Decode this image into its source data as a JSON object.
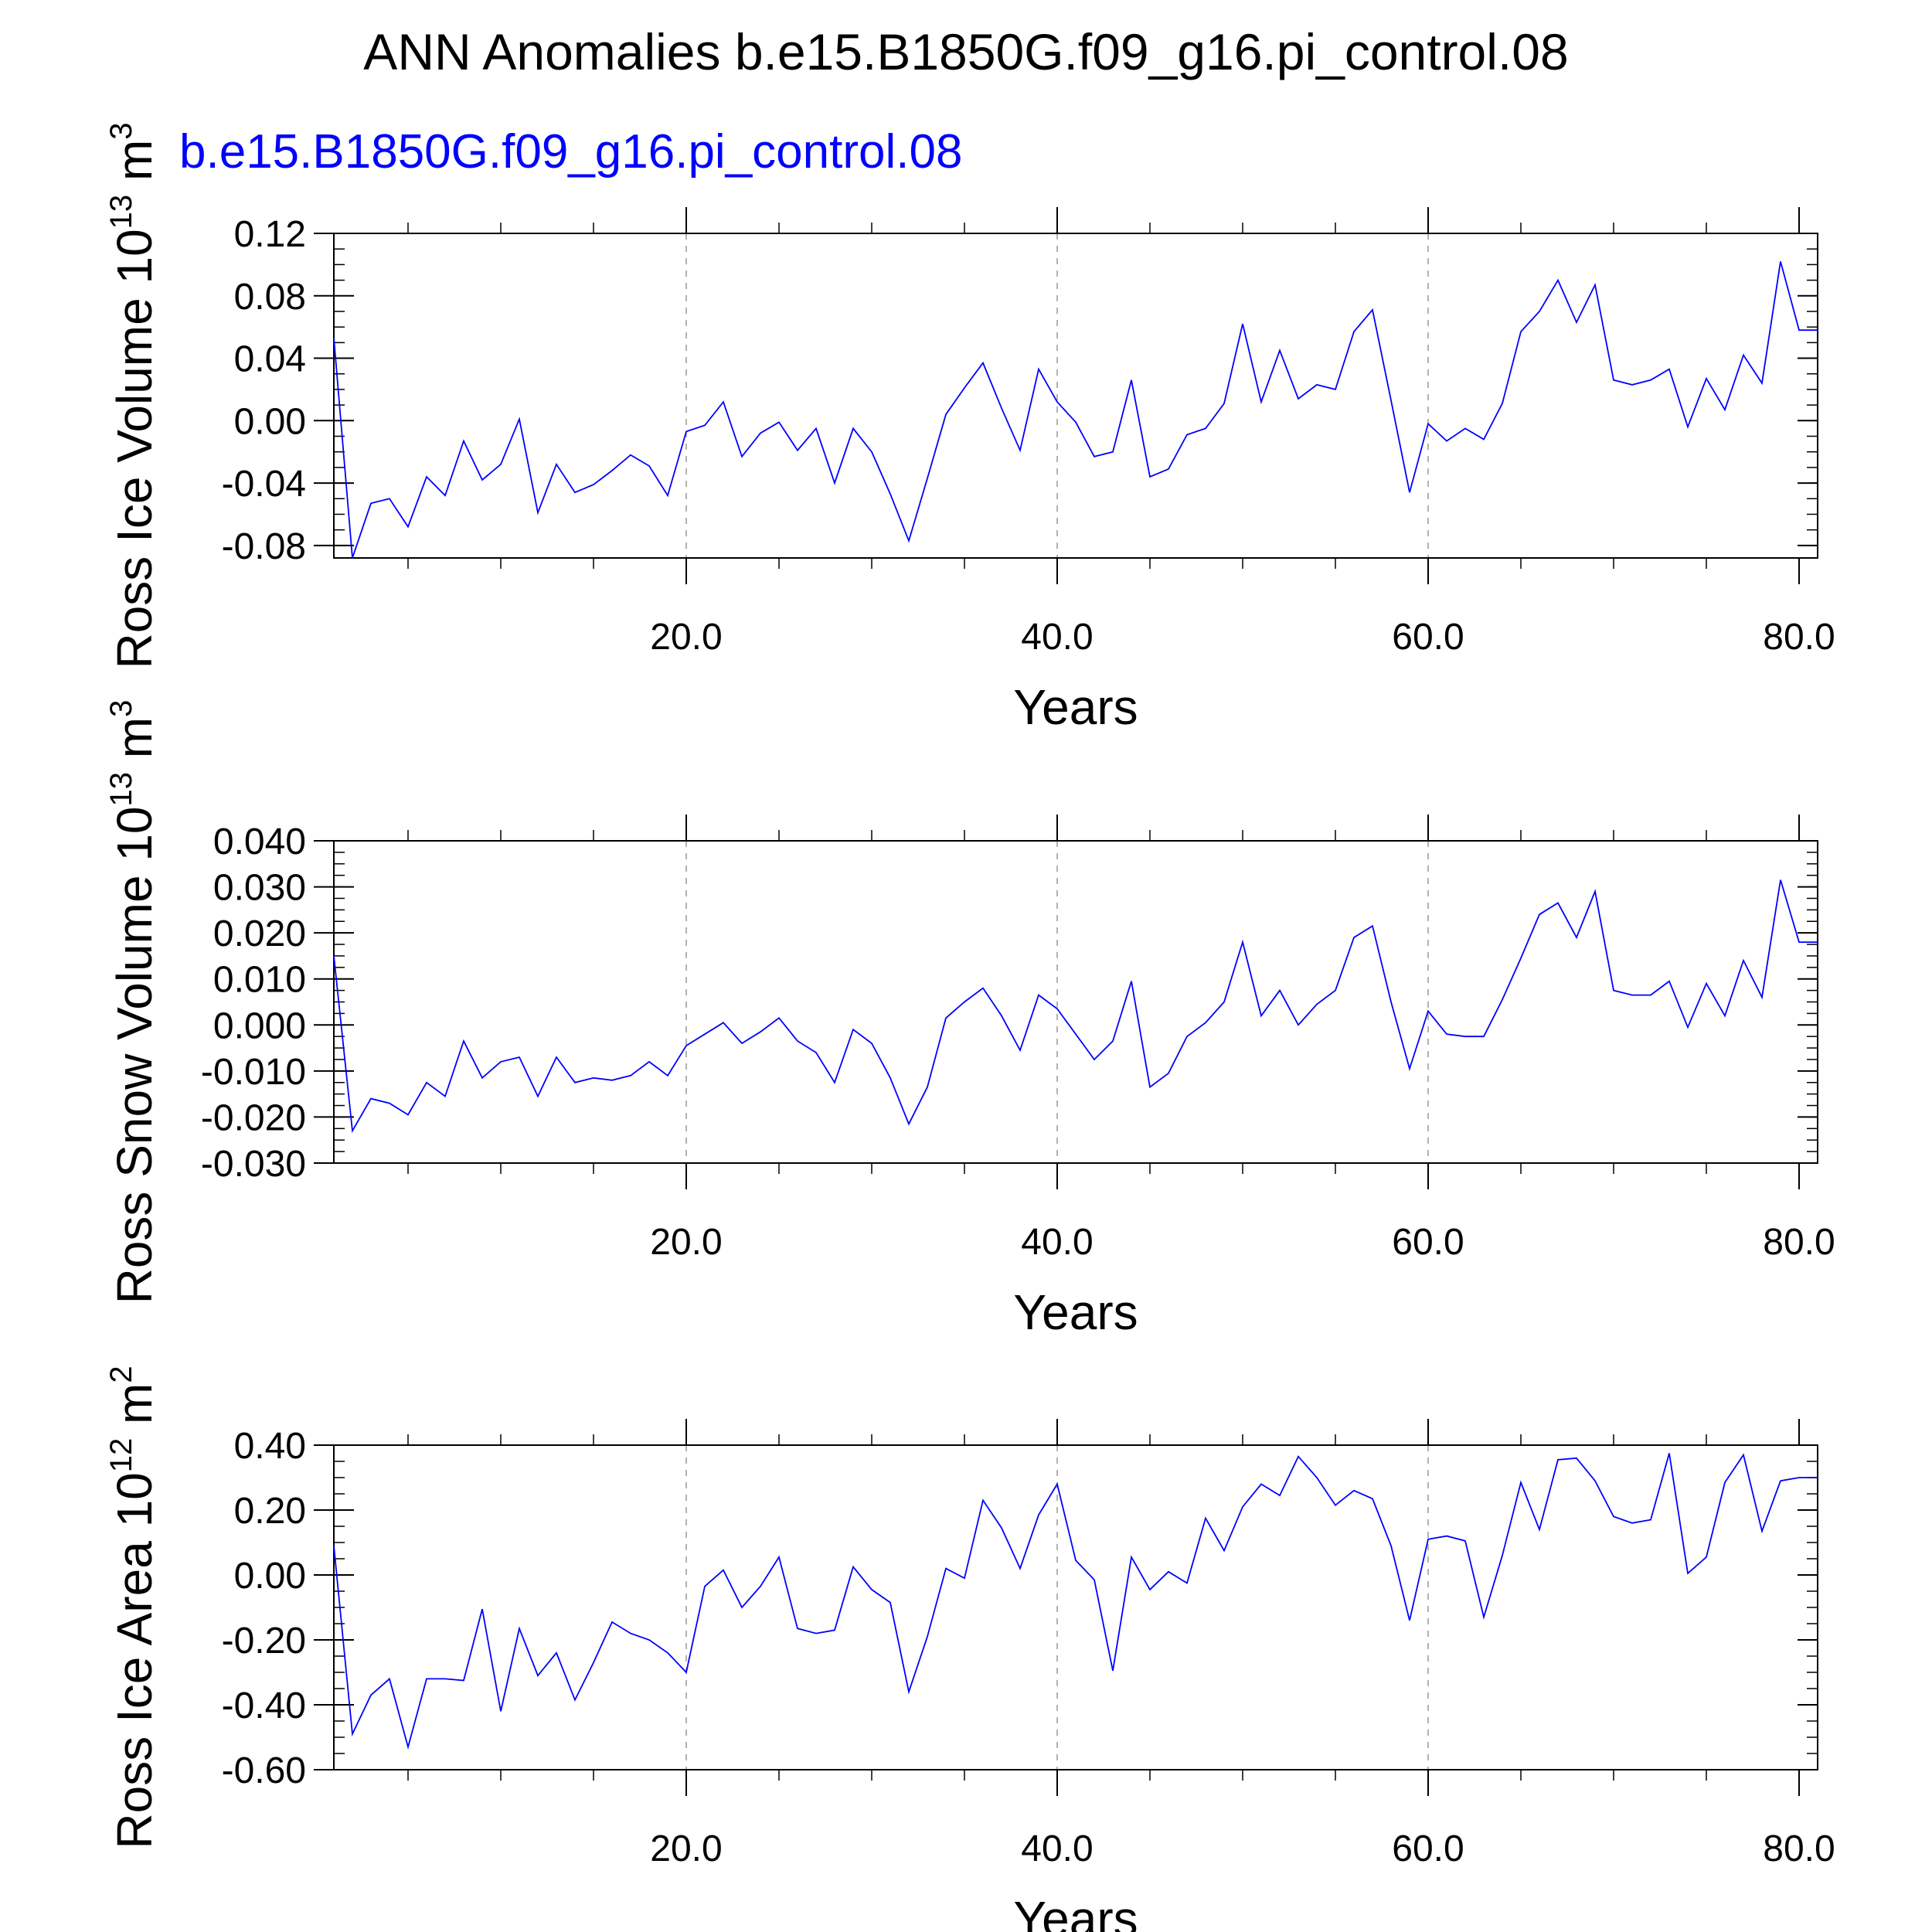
{
  "title": "ANN Anomalies b.e15.B1850G.f09_g16.pi_control.08",
  "case_label": "b.e15.B1850G.f09_g16.pi_control.08",
  "colors": {
    "line": "#0000ff",
    "case_label": "#0000ff",
    "grid": "#999999"
  },
  "chart_data": [
    {
      "type": "line",
      "ylabel": "Ross Ice Volume 10",
      "yunit_exp": "13",
      "yunit_post": " m",
      "yunit_exp2": "3",
      "xlabel": "Years",
      "xlim": [
        1,
        81
      ],
      "ylim": [
        -0.088,
        0.12
      ],
      "yticks": [
        0.12,
        0.08,
        0.04,
        0.0,
        -0.04,
        -0.08
      ],
      "ytick_labels": [
        "0.12",
        "0.08",
        "0.04",
        "0.00",
        "-0.04",
        "-0.08"
      ],
      "yminor": 0.01,
      "xticks": [
        20,
        40,
        60,
        80
      ],
      "xtick_labels": [
        "20.0",
        "40.0",
        "60.0",
        "80.0"
      ],
      "xminor": 5,
      "vgrid": [
        20,
        40,
        60
      ],
      "series": [
        {
          "x": [
            1,
            2,
            3,
            4,
            5,
            6,
            7,
            8,
            9,
            10,
            11,
            12,
            13,
            14,
            15,
            16,
            17,
            18,
            19,
            20,
            21,
            22,
            23,
            24,
            25,
            26,
            27,
            28,
            29,
            30,
            31,
            32,
            33,
            34,
            35,
            36,
            37,
            38,
            39,
            40,
            41,
            42,
            43,
            44,
            45,
            46,
            47,
            48,
            49,
            50,
            51,
            52,
            53,
            54,
            55,
            56,
            57,
            58,
            59,
            60,
            61,
            62,
            63,
            64,
            65,
            66,
            67,
            68,
            69,
            70,
            71,
            72,
            73,
            74,
            75,
            76,
            77,
            78,
            79,
            80,
            81
          ],
          "values": [
            0.053,
            -0.088,
            -0.053,
            -0.05,
            -0.068,
            -0.036,
            -0.048,
            -0.013,
            -0.038,
            -0.028,
            0.001,
            -0.059,
            -0.028,
            -0.046,
            -0.041,
            -0.032,
            -0.022,
            -0.029,
            -0.048,
            -0.007,
            -0.003,
            0.012,
            -0.023,
            -0.008,
            -0.001,
            -0.019,
            -0.005,
            -0.04,
            -0.005,
            -0.02,
            -0.047,
            -0.077,
            -0.037,
            0.004,
            0.021,
            0.037,
            0.008,
            -0.019,
            0.033,
            0.012,
            -0.001,
            -0.023,
            -0.02,
            0.026,
            -0.036,
            -0.031,
            -0.009,
            -0.005,
            0.011,
            0.062,
            0.012,
            0.045,
            0.014,
            0.023,
            0.02,
            0.057,
            0.071,
            0.013,
            -0.046,
            -0.002,
            -0.013,
            -0.005,
            -0.012,
            0.011,
            0.057,
            0.07,
            0.09,
            0.063,
            0.087,
            0.026,
            0.023,
            0.026,
            0.033,
            -0.004,
            0.027,
            0.007,
            0.042,
            0.024,
            0.102,
            0.058,
            0.058
          ]
        }
      ]
    },
    {
      "type": "line",
      "ylabel": "Ross Snow Volume 10",
      "yunit_exp": "13",
      "yunit_post": " m",
      "yunit_exp2": "3",
      "xlabel": "Years",
      "xlim": [
        1,
        81
      ],
      "ylim": [
        -0.03,
        0.04
      ],
      "yticks": [
        0.04,
        0.03,
        0.02,
        0.01,
        0.0,
        -0.01,
        -0.02,
        -0.03
      ],
      "ytick_labels": [
        "0.040",
        "0.030",
        "0.020",
        "0.010",
        "0.000",
        "-0.010",
        "-0.020",
        "-0.030"
      ],
      "yminor": 0.0025,
      "xticks": [
        20,
        40,
        60,
        80
      ],
      "xtick_labels": [
        "20.0",
        "40.0",
        "60.0",
        "80.0"
      ],
      "xminor": 5,
      "vgrid": [
        20,
        40,
        60
      ],
      "series": [
        {
          "x": [
            1,
            2,
            3,
            4,
            5,
            6,
            7,
            8,
            9,
            10,
            11,
            12,
            13,
            14,
            15,
            16,
            17,
            18,
            19,
            20,
            21,
            22,
            23,
            24,
            25,
            26,
            27,
            28,
            29,
            30,
            31,
            32,
            33,
            34,
            35,
            36,
            37,
            38,
            39,
            40,
            41,
            42,
            43,
            44,
            45,
            46,
            47,
            48,
            49,
            50,
            51,
            52,
            53,
            54,
            55,
            56,
            57,
            58,
            59,
            60,
            61,
            62,
            63,
            64,
            65,
            66,
            67,
            68,
            69,
            70,
            71,
            72,
            73,
            74,
            75,
            76,
            77,
            78,
            79,
            80,
            81
          ],
          "values": [
            0.015,
            -0.023,
            -0.016,
            -0.017,
            -0.0195,
            -0.0125,
            -0.0155,
            -0.0035,
            -0.0115,
            -0.008,
            -0.007,
            -0.0155,
            -0.007,
            -0.0125,
            -0.0115,
            -0.012,
            -0.011,
            -0.008,
            -0.011,
            -0.0045,
            -0.002,
            0.0005,
            -0.004,
            -0.0015,
            0.0015,
            -0.0035,
            -0.006,
            -0.0125,
            -0.001,
            -0.004,
            -0.0115,
            -0.0215,
            -0.0135,
            0.0015,
            0.005,
            0.008,
            0.002,
            -0.0055,
            0.0065,
            0.0035,
            -0.002,
            -0.0075,
            -0.0035,
            0.0095,
            -0.0135,
            -0.0105,
            -0.0025,
            0.0005,
            0.005,
            0.018,
            0.002,
            0.0075,
            0.0,
            0.0045,
            0.0075,
            0.019,
            0.0215,
            0.005,
            -0.0095,
            0.003,
            -0.002,
            -0.0025,
            -0.0025,
            0.0055,
            0.0145,
            0.024,
            0.0265,
            0.019,
            0.029,
            0.0075,
            0.0065,
            0.0065,
            0.0095,
            -0.0005,
            0.009,
            0.002,
            0.014,
            0.006,
            0.0315,
            0.018,
            0.018
          ]
        }
      ]
    },
    {
      "type": "line",
      "ylabel": "Ross Ice Area 10",
      "yunit_exp": "12",
      "yunit_post": " m",
      "yunit_exp2": "2",
      "xlabel": "Years",
      "xlim": [
        1,
        81
      ],
      "ylim": [
        -0.6,
        0.4
      ],
      "yticks": [
        0.4,
        0.2,
        0.0,
        -0.2,
        -0.4,
        -0.6
      ],
      "ytick_labels": [
        "0.40",
        "0.20",
        "0.00",
        "-0.20",
        "-0.40",
        "-0.60"
      ],
      "yminor": 0.05,
      "xticks": [
        20,
        40,
        60,
        80
      ],
      "xtick_labels": [
        "20.0",
        "40.0",
        "60.0",
        "80.0"
      ],
      "xminor": 5,
      "vgrid": [
        20,
        40,
        60
      ],
      "series": [
        {
          "x": [
            1,
            2,
            3,
            4,
            5,
            6,
            7,
            8,
            9,
            10,
            11,
            12,
            13,
            14,
            15,
            16,
            17,
            18,
            19,
            20,
            21,
            22,
            23,
            24,
            25,
            26,
            27,
            28,
            29,
            30,
            31,
            32,
            33,
            34,
            35,
            36,
            37,
            38,
            39,
            40,
            41,
            42,
            43,
            44,
            45,
            46,
            47,
            48,
            49,
            50,
            51,
            52,
            53,
            54,
            55,
            56,
            57,
            58,
            59,
            60,
            61,
            62,
            63,
            64,
            65,
            66,
            67,
            68,
            69,
            70,
            71,
            72,
            73,
            74,
            75,
            76,
            77,
            78,
            79,
            80,
            81
          ],
          "values": [
            0.09,
            -0.49,
            -0.37,
            -0.32,
            -0.53,
            -0.32,
            -0.32,
            -0.325,
            -0.105,
            -0.42,
            -0.165,
            -0.31,
            -0.24,
            -0.385,
            -0.27,
            -0.145,
            -0.18,
            -0.2,
            -0.24,
            -0.3,
            -0.035,
            0.015,
            -0.1,
            -0.035,
            0.055,
            -0.165,
            -0.18,
            -0.17,
            0.025,
            -0.045,
            -0.085,
            -0.36,
            -0.19,
            0.02,
            -0.01,
            0.23,
            0.145,
            0.02,
            0.185,
            0.28,
            0.045,
            -0.015,
            -0.295,
            0.055,
            -0.045,
            0.01,
            -0.025,
            0.175,
            0.075,
            0.21,
            0.28,
            0.245,
            0.365,
            0.3,
            0.215,
            0.26,
            0.235,
            0.09,
            -0.14,
            0.11,
            0.12,
            0.105,
            -0.13,
            0.06,
            0.285,
            0.14,
            0.355,
            0.36,
            0.29,
            0.18,
            0.16,
            0.17,
            0.375,
            0.005,
            0.055,
            0.285,
            0.37,
            0.135,
            0.29,
            0.3,
            0.3
          ]
        }
      ]
    }
  ]
}
